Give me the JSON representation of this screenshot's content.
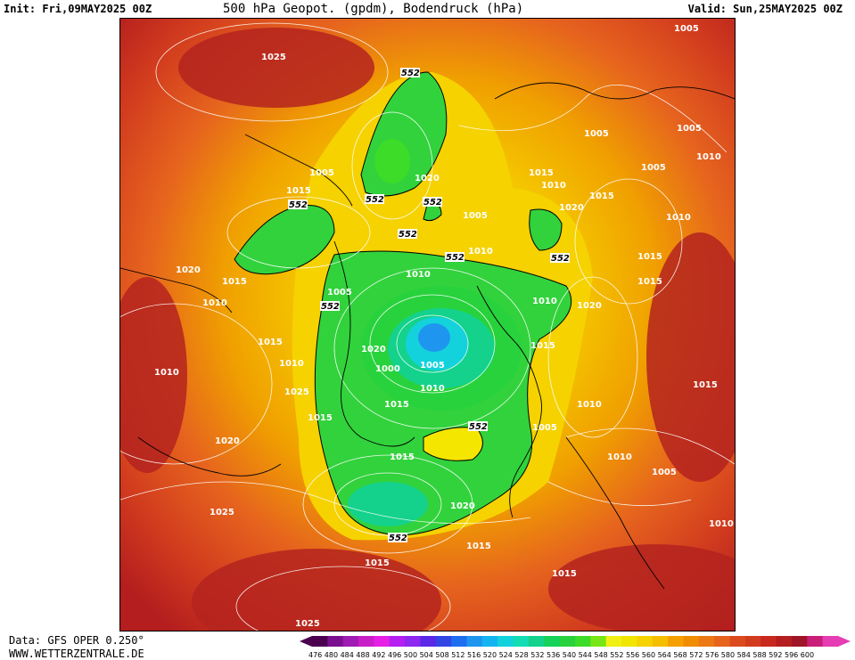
{
  "header": {
    "init": "Init: Fri,09MAY2025 00Z",
    "title": "500 hPa Geopot. (gpdm), Bodendruck (hPa)",
    "valid": "Valid: Sun,25MAY2025 00Z"
  },
  "footer": {
    "source": "Data: GFS OPER 0.250°",
    "website": "WWW.WETTERZENTRALE.DE"
  },
  "map": {
    "projection": "polar stereographic, north pole centered",
    "geopotential_contour_label": "552",
    "pressure_labels": [
      "1025",
      "1005",
      "1005",
      "1005",
      "1010",
      "1005",
      "1010",
      "1015",
      "1015",
      "1005",
      "1020",
      "1015",
      "1020",
      "1010",
      "1005",
      "1010",
      "1015",
      "1020",
      "1010",
      "1015",
      "1015",
      "1020",
      "1005",
      "1010",
      "1010",
      "1015",
      "1015",
      "1020",
      "1010",
      "1000",
      "1005",
      "1010",
      "1015",
      "1010",
      "1025",
      "1015",
      "1010",
      "1015",
      "1020",
      "1005",
      "1010",
      "1005",
      "1015",
      "1020",
      "1010",
      "1025",
      "1015",
      "1015",
      "1015"
    ]
  },
  "colorbar": {
    "ticks": [
      "476",
      "480",
      "484",
      "488",
      "492",
      "496",
      "500",
      "504",
      "508",
      "512",
      "516",
      "520",
      "524",
      "528",
      "532",
      "536",
      "540",
      "544",
      "548",
      "552",
      "556",
      "560",
      "564",
      "568",
      "572",
      "576",
      "580",
      "584",
      "588",
      "592",
      "596",
      "600"
    ],
    "colors": [
      "#4b0050",
      "#7a1090",
      "#a01ab4",
      "#c81ec8",
      "#e61ee6",
      "#b41ef0",
      "#8c28f0",
      "#5a28e6",
      "#3246e6",
      "#1e6ef0",
      "#1e96f0",
      "#14b4f0",
      "#14d2dc",
      "#14dcb4",
      "#14d28c",
      "#14d25a",
      "#28d23c",
      "#3cdc28",
      "#78e614",
      "#f0f014",
      "#f0e600",
      "#f5d200",
      "#f5be00",
      "#f5a000",
      "#f08c00",
      "#eb7814",
      "#e6641e",
      "#dc4b1e",
      "#d23c1e",
      "#c8281e",
      "#b41e1e",
      "#a01428",
      "#c81e78",
      "#e63cb4"
    ]
  }
}
